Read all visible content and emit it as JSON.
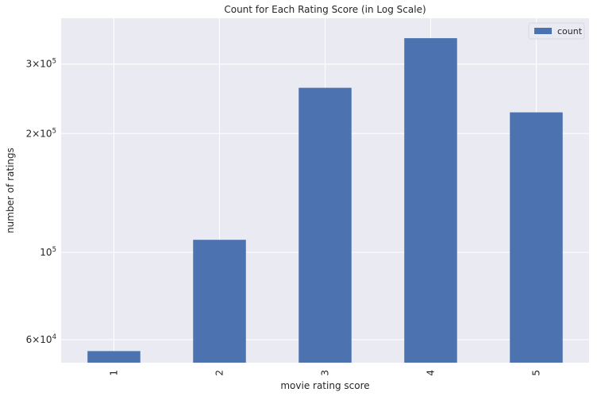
{
  "chart_data": {
    "type": "bar",
    "title": "Count for Each Rating Score (in Log Scale)",
    "xlabel": "movie rating score",
    "ylabel": "number of ratings",
    "categories": [
      "1",
      "2",
      "3",
      "4",
      "5"
    ],
    "series": [
      {
        "name": "count",
        "values": [
          56174,
          107557,
          261197,
          348971,
          226310
        ],
        "color": "#4c72b0"
      }
    ],
    "yscale": "log",
    "ylim": [
      52500,
      392000
    ],
    "yticks": [
      {
        "value": 60000,
        "mantissa": "6",
        "base": "10",
        "exp": "4"
      },
      {
        "value": 100000,
        "mantissa": "",
        "base": "10",
        "exp": "5"
      },
      {
        "value": 200000,
        "mantissa": "2",
        "base": "10",
        "exp": "5"
      },
      {
        "value": 300000,
        "mantissa": "3",
        "base": "10",
        "exp": "5"
      }
    ],
    "grid": true,
    "legend_position": "top-right",
    "colors": {
      "background": "#eaeaf2",
      "grid": "#ffffff",
      "bar": "#4c72b0"
    }
  }
}
